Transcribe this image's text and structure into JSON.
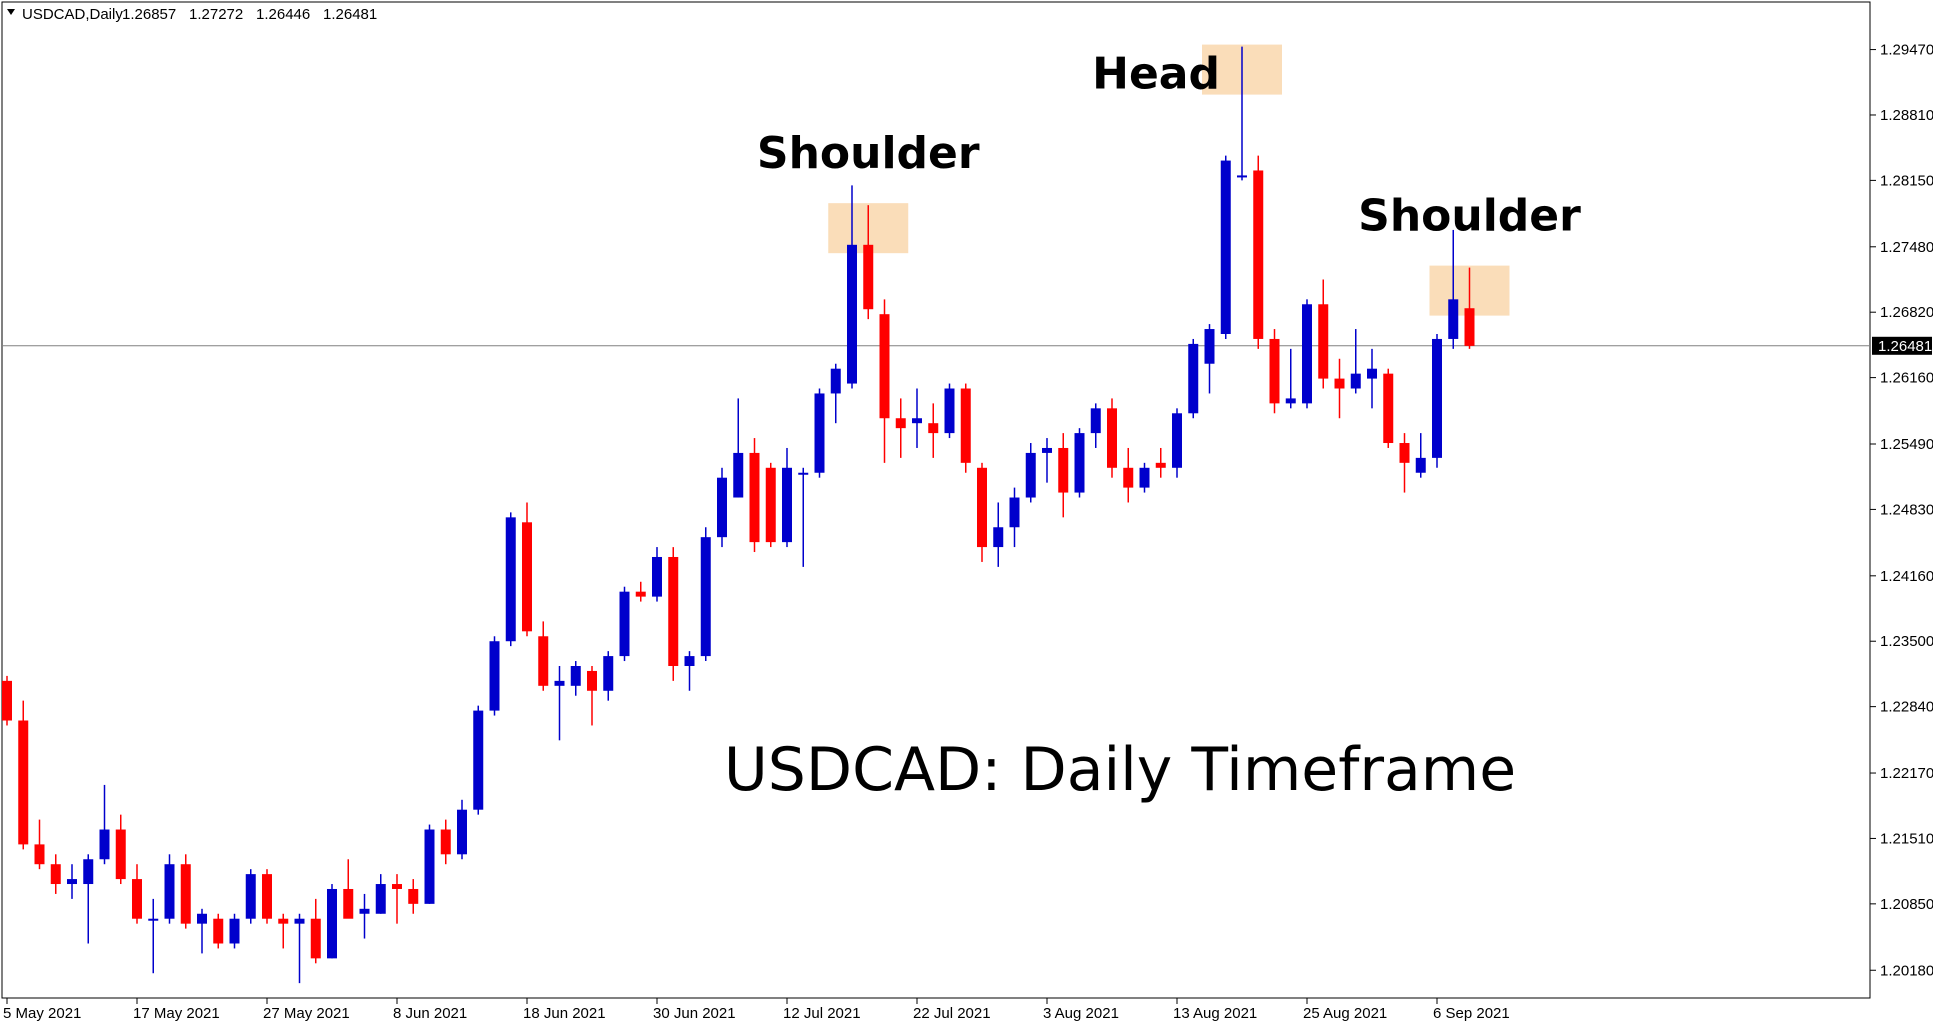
{
  "header": {
    "symbol_label": "USDCAD,Daily",
    "ohlc": [
      "1.26857",
      "1.27272",
      "1.26446",
      "1.26481"
    ]
  },
  "colors": {
    "bull": "#0000cc",
    "bear": "#ff0000",
    "highlight": "#f9d7ad",
    "grid_line": "#808080"
  },
  "caption": "USDCAD: Daily Timeframe",
  "chart_data": {
    "type": "candlestick",
    "symbol": "USDCAD",
    "timeframe": "Daily",
    "ylim": [
      1.199,
      1.2995
    ],
    "y_ticks": [
      "1.29470",
      "1.28810",
      "1.28150",
      "1.27480",
      "1.26820",
      "1.26160",
      "1.25490",
      "1.24830",
      "1.24160",
      "1.23500",
      "1.22840",
      "1.22170",
      "1.21510",
      "1.20850",
      "1.20180"
    ],
    "x_ticks": [
      {
        "label": "5 May 2021",
        "index": 0
      },
      {
        "label": "17 May 2021",
        "index": 8
      },
      {
        "label": "27 May 2021",
        "index": 16
      },
      {
        "label": "8 Jun 2021",
        "index": 24
      },
      {
        "label": "18 Jun 2021",
        "index": 32
      },
      {
        "label": "30 Jun 2021",
        "index": 40
      },
      {
        "label": "12 Jul 2021",
        "index": 48
      },
      {
        "label": "22 Jul 2021",
        "index": 56
      },
      {
        "label": "3 Aug 2021",
        "index": 64
      },
      {
        "label": "13 Aug 2021",
        "index": 72
      },
      {
        "label": "25 Aug 2021",
        "index": 80
      },
      {
        "label": "6 Sep 2021",
        "index": 88
      }
    ],
    "current_price": "1.26481",
    "candles": [
      [
        1.231,
        1.2315,
        1.2265,
        1.227
      ],
      [
        1.227,
        1.229,
        1.214,
        1.2145
      ],
      [
        1.2145,
        1.217,
        1.212,
        1.2125
      ],
      [
        1.2125,
        1.2135,
        1.2095,
        1.2105
      ],
      [
        1.2105,
        1.2125,
        1.209,
        1.211
      ],
      [
        1.2105,
        1.2135,
        1.2045,
        1.213
      ],
      [
        1.213,
        1.2205,
        1.2125,
        1.216
      ],
      [
        1.216,
        1.2175,
        1.2105,
        1.211
      ],
      [
        1.211,
        1.2125,
        1.2065,
        1.207
      ],
      [
        1.207,
        1.209,
        1.2015,
        1.207
      ],
      [
        1.207,
        1.2135,
        1.2065,
        1.2125
      ],
      [
        1.2125,
        1.2135,
        1.206,
        1.2065
      ],
      [
        1.2065,
        1.208,
        1.2035,
        1.2075
      ],
      [
        1.207,
        1.2075,
        1.204,
        1.2045
      ],
      [
        1.2045,
        1.2075,
        1.204,
        1.207
      ],
      [
        1.207,
        1.212,
        1.2065,
        1.2115
      ],
      [
        1.2115,
        1.212,
        1.2065,
        1.207
      ],
      [
        1.207,
        1.2075,
        1.204,
        1.2065
      ],
      [
        1.2065,
        1.2075,
        1.2005,
        1.207
      ],
      [
        1.207,
        1.209,
        1.2025,
        1.203
      ],
      [
        1.203,
        1.2105,
        1.203,
        1.21
      ],
      [
        1.21,
        1.213,
        1.2075,
        1.207
      ],
      [
        1.2075,
        1.2095,
        1.205,
        1.208
      ],
      [
        1.2075,
        1.2115,
        1.2075,
        1.2105
      ],
      [
        1.2105,
        1.2115,
        1.2065,
        1.21
      ],
      [
        1.21,
        1.211,
        1.2075,
        1.2085
      ],
      [
        1.2085,
        1.2165,
        1.2085,
        1.216
      ],
      [
        1.216,
        1.217,
        1.2125,
        1.2135
      ],
      [
        1.2135,
        1.219,
        1.213,
        1.218
      ],
      [
        1.218,
        1.2285,
        1.2175,
        1.228
      ],
      [
        1.228,
        1.2355,
        1.2275,
        1.235
      ],
      [
        1.235,
        1.248,
        1.2345,
        1.2475
      ],
      [
        1.247,
        1.249,
        1.2355,
        1.236
      ],
      [
        1.2355,
        1.237,
        1.23,
        1.2305
      ],
      [
        1.2305,
        1.2325,
        1.225,
        1.231
      ],
      [
        1.2305,
        1.233,
        1.2295,
        1.2325
      ],
      [
        1.232,
        1.2325,
        1.2265,
        1.23
      ],
      [
        1.23,
        1.234,
        1.229,
        1.2335
      ],
      [
        1.2335,
        1.2405,
        1.233,
        1.24
      ],
      [
        1.24,
        1.241,
        1.239,
        1.2395
      ],
      [
        1.2395,
        1.2445,
        1.239,
        1.2435
      ],
      [
        1.2435,
        1.2445,
        1.231,
        1.2325
      ],
      [
        1.2325,
        1.234,
        1.23,
        1.2335
      ],
      [
        1.2335,
        1.2465,
        1.233,
        1.2455
      ],
      [
        1.2455,
        1.2525,
        1.2445,
        1.2515
      ],
      [
        1.2495,
        1.2595,
        1.2495,
        1.254
      ],
      [
        1.254,
        1.2555,
        1.244,
        1.245
      ],
      [
        1.2525,
        1.253,
        1.2445,
        1.245
      ],
      [
        1.245,
        1.2545,
        1.2445,
        1.2525
      ],
      [
        1.252,
        1.2525,
        1.2425,
        1.252
      ],
      [
        1.252,
        1.2605,
        1.2515,
        1.26
      ],
      [
        1.26,
        1.263,
        1.257,
        1.2625
      ],
      [
        1.261,
        1.281,
        1.2605,
        1.275
      ],
      [
        1.275,
        1.279,
        1.2675,
        1.2685
      ],
      [
        1.268,
        1.2695,
        1.253,
        1.2575
      ],
      [
        1.2575,
        1.2595,
        1.2535,
        1.2565
      ],
      [
        1.257,
        1.2605,
        1.2545,
        1.2575
      ],
      [
        1.257,
        1.259,
        1.2535,
        1.256
      ],
      [
        1.256,
        1.261,
        1.2555,
        1.2605
      ],
      [
        1.2605,
        1.261,
        1.252,
        1.253
      ],
      [
        1.2525,
        1.253,
        1.243,
        1.2445
      ],
      [
        1.2445,
        1.249,
        1.2425,
        1.2465
      ],
      [
        1.2465,
        1.2505,
        1.2445,
        1.2495
      ],
      [
        1.2495,
        1.255,
        1.249,
        1.254
      ],
      [
        1.254,
        1.2555,
        1.251,
        1.2545
      ],
      [
        1.2545,
        1.256,
        1.2475,
        1.25
      ],
      [
        1.25,
        1.2565,
        1.2495,
        1.256
      ],
      [
        1.256,
        1.259,
        1.2545,
        1.2585
      ],
      [
        1.2585,
        1.2595,
        1.2515,
        1.2525
      ],
      [
        1.2525,
        1.2545,
        1.249,
        1.2505
      ],
      [
        1.2505,
        1.253,
        1.25,
        1.2525
      ],
      [
        1.253,
        1.2545,
        1.2515,
        1.2525
      ],
      [
        1.2525,
        1.2585,
        1.2515,
        1.258
      ],
      [
        1.258,
        1.2655,
        1.2575,
        1.265
      ],
      [
        1.263,
        1.267,
        1.26,
        1.2665
      ],
      [
        1.266,
        1.284,
        1.2655,
        1.2835
      ],
      [
        1.282,
        1.295,
        1.2815,
        1.282
      ],
      [
        1.2825,
        1.284,
        1.2645,
        1.2655
      ],
      [
        1.2655,
        1.2665,
        1.258,
        1.259
      ],
      [
        1.259,
        1.2645,
        1.2585,
        1.2595
      ],
      [
        1.259,
        1.2695,
        1.2585,
        1.269
      ],
      [
        1.269,
        1.2715,
        1.2605,
        1.2615
      ],
      [
        1.2615,
        1.2635,
        1.2575,
        1.2605
      ],
      [
        1.2605,
        1.2665,
        1.26,
        1.262
      ],
      [
        1.2615,
        1.2645,
        1.2585,
        1.2625
      ],
      [
        1.262,
        1.2625,
        1.2545,
        1.255
      ],
      [
        1.255,
        1.256,
        1.25,
        1.253
      ],
      [
        1.252,
        1.256,
        1.2515,
        1.2535
      ],
      [
        1.2535,
        1.266,
        1.2525,
        1.2655
      ],
      [
        1.2655,
        1.2765,
        1.2645,
        1.2695
      ],
      [
        1.2686,
        1.2727,
        1.2645,
        1.2648
      ]
    ]
  },
  "annotations": [
    {
      "text": "Shoulder",
      "candle": 53
    },
    {
      "text": "Head",
      "candle": 76
    },
    {
      "text": "Shoulder",
      "candle": 90
    }
  ]
}
